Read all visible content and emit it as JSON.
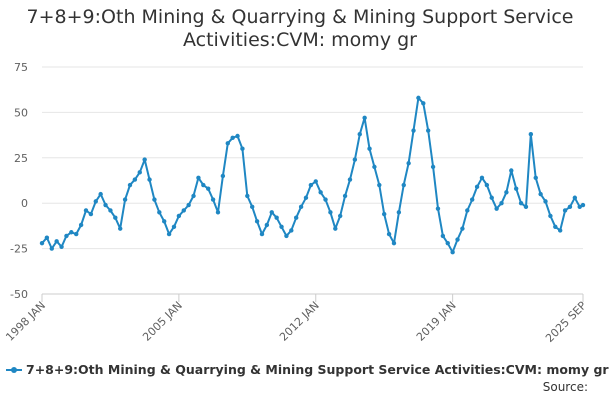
{
  "chart_data": {
    "type": "line",
    "title_line1": "7+8+9:Oth Mining & Quarrying & Mining Support Service",
    "title_line2": "Activities:CVM: momy gr",
    "xlabel": "",
    "ylabel": "",
    "ylim": [
      -50,
      75
    ],
    "yticks": [
      75,
      50,
      25,
      0,
      -25,
      -50
    ],
    "xlim": [
      1998.0,
      2025.667
    ],
    "xticks": [
      {
        "label": "1998 JAN",
        "x": 1998.0
      },
      {
        "label": "2005 JAN",
        "x": 2005.0
      },
      {
        "label": "2012 JAN",
        "x": 2012.0
      },
      {
        "label": "2019 JAN",
        "x": 2019.0
      },
      {
        "label": "2025 SEP",
        "x": 2025.667
      }
    ],
    "grid": true,
    "legend_position": "bottom",
    "series": [
      {
        "name": "7+8+9:Oth Mining & Quarrying & Mining Support Service Activities:CVM: momy gr",
        "color": "#1f87c3",
        "points": [
          [
            1998.0,
            -22
          ],
          [
            1998.25,
            -19
          ],
          [
            1998.5,
            -25
          ],
          [
            1998.75,
            -21
          ],
          [
            1999.0,
            -24
          ],
          [
            1999.25,
            -18
          ],
          [
            1999.5,
            -16
          ],
          [
            1999.75,
            -17
          ],
          [
            2000.0,
            -12
          ],
          [
            2000.25,
            -4
          ],
          [
            2000.5,
            -6
          ],
          [
            2000.75,
            1
          ],
          [
            2001.0,
            5
          ],
          [
            2001.25,
            -1
          ],
          [
            2001.5,
            -4
          ],
          [
            2001.75,
            -8
          ],
          [
            2002.0,
            -14
          ],
          [
            2002.25,
            2
          ],
          [
            2002.5,
            10
          ],
          [
            2002.75,
            13
          ],
          [
            2003.0,
            17
          ],
          [
            2003.25,
            24
          ],
          [
            2003.5,
            13
          ],
          [
            2003.75,
            2
          ],
          [
            2004.0,
            -5
          ],
          [
            2004.25,
            -10
          ],
          [
            2004.5,
            -17
          ],
          [
            2004.75,
            -13
          ],
          [
            2005.0,
            -7
          ],
          [
            2005.25,
            -4
          ],
          [
            2005.5,
            -1
          ],
          [
            2005.75,
            4
          ],
          [
            2006.0,
            14
          ],
          [
            2006.25,
            10
          ],
          [
            2006.5,
            8
          ],
          [
            2006.75,
            2
          ],
          [
            2007.0,
            -5
          ],
          [
            2007.25,
            15
          ],
          [
            2007.5,
            33
          ],
          [
            2007.75,
            36
          ],
          [
            2008.0,
            37
          ],
          [
            2008.25,
            30
          ],
          [
            2008.5,
            4
          ],
          [
            2008.75,
            -2
          ],
          [
            2009.0,
            -10
          ],
          [
            2009.25,
            -17
          ],
          [
            2009.5,
            -12
          ],
          [
            2009.75,
            -5
          ],
          [
            2010.0,
            -8
          ],
          [
            2010.25,
            -13
          ],
          [
            2010.5,
            -18
          ],
          [
            2010.75,
            -15
          ],
          [
            2011.0,
            -8
          ],
          [
            2011.25,
            -2
          ],
          [
            2011.5,
            3
          ],
          [
            2011.75,
            10
          ],
          [
            2012.0,
            12
          ],
          [
            2012.25,
            6
          ],
          [
            2012.5,
            2
          ],
          [
            2012.75,
            -5
          ],
          [
            2013.0,
            -14
          ],
          [
            2013.25,
            -7
          ],
          [
            2013.5,
            4
          ],
          [
            2013.75,
            13
          ],
          [
            2014.0,
            24
          ],
          [
            2014.25,
            38
          ],
          [
            2014.5,
            47
          ],
          [
            2014.75,
            30
          ],
          [
            2015.0,
            20
          ],
          [
            2015.25,
            10
          ],
          [
            2015.5,
            -6
          ],
          [
            2015.75,
            -17
          ],
          [
            2016.0,
            -22
          ],
          [
            2016.25,
            -5
          ],
          [
            2016.5,
            10
          ],
          [
            2016.75,
            22
          ],
          [
            2017.0,
            40
          ],
          [
            2017.25,
            58
          ],
          [
            2017.5,
            55
          ],
          [
            2017.75,
            40
          ],
          [
            2018.0,
            20
          ],
          [
            2018.25,
            -3
          ],
          [
            2018.5,
            -18
          ],
          [
            2018.75,
            -22
          ],
          [
            2019.0,
            -27
          ],
          [
            2019.25,
            -20
          ],
          [
            2019.5,
            -14
          ],
          [
            2019.75,
            -4
          ],
          [
            2020.0,
            2
          ],
          [
            2020.25,
            9
          ],
          [
            2020.5,
            14
          ],
          [
            2020.75,
            10
          ],
          [
            2021.0,
            3
          ],
          [
            2021.25,
            -3
          ],
          [
            2021.5,
            0
          ],
          [
            2021.75,
            6
          ],
          [
            2022.0,
            18
          ],
          [
            2022.25,
            8
          ],
          [
            2022.5,
            0
          ],
          [
            2022.75,
            -2
          ],
          [
            2023.0,
            38
          ],
          [
            2023.25,
            14
          ],
          [
            2023.5,
            5
          ],
          [
            2023.75,
            1
          ],
          [
            2024.0,
            -7
          ],
          [
            2024.25,
            -13
          ],
          [
            2024.5,
            -15
          ],
          [
            2024.75,
            -4
          ],
          [
            2025.0,
            -2
          ],
          [
            2025.25,
            3
          ],
          [
            2025.5,
            -2
          ],
          [
            2025.667,
            -1
          ]
        ]
      }
    ]
  },
  "legend": {
    "label": "7+8+9:Oth Mining & Quarrying & Mining Support Service Activities:CVM: momy gr"
  },
  "footer": {
    "source": "Source:"
  }
}
